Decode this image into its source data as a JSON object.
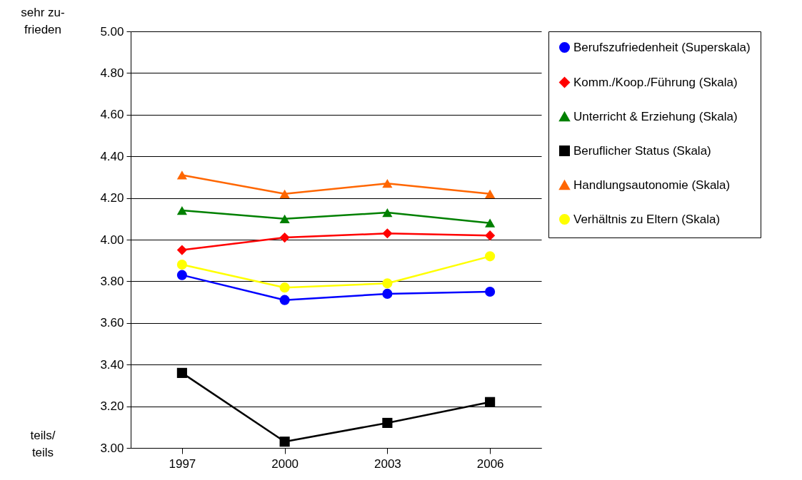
{
  "chart_data": {
    "type": "line",
    "categories": [
      "1997",
      "2000",
      "2003",
      "2006"
    ],
    "series": [
      {
        "name": "Berufszufriedenheit (Superskala)",
        "color": "#0000ff",
        "marker": "circle",
        "values": [
          3.83,
          3.71,
          3.74,
          3.75
        ]
      },
      {
        "name": "Komm./Koop./Führung (Skala)",
        "color": "#ff0000",
        "marker": "diamond",
        "values": [
          3.95,
          4.01,
          4.03,
          4.02
        ]
      },
      {
        "name": "Unterricht & Erziehung (Skala)",
        "color": "#008000",
        "marker": "triangle",
        "values": [
          4.14,
          4.1,
          4.13,
          4.08
        ]
      },
      {
        "name": "Beruflicher Status (Skala)",
        "color": "#000000",
        "marker": "square",
        "values": [
          3.36,
          3.03,
          3.12,
          3.22
        ]
      },
      {
        "name": "Handlungsautonomie (Skala)",
        "color": "#ff6600",
        "marker": "triangle",
        "values": [
          4.31,
          4.22,
          4.27,
          4.22
        ]
      },
      {
        "name": "Verhältnis zu Eltern (Skala)",
        "color": "#ffff00",
        "marker": "circle",
        "values": [
          3.88,
          3.77,
          3.79,
          3.92
        ]
      }
    ],
    "ylim": [
      3,
      5
    ],
    "yticks": [
      {
        "value": 3,
        "label": "3.00"
      },
      {
        "value": 3.2,
        "label": "3.20"
      },
      {
        "value": 3.4,
        "label": "3.40"
      },
      {
        "value": 3.6,
        "label": "3.60"
      },
      {
        "value": 3.8,
        "label": "3.80"
      },
      {
        "value": 4,
        "label": "4.00"
      },
      {
        "value": 4.2,
        "label": "4.20"
      },
      {
        "value": 4.4,
        "label": "4.40"
      },
      {
        "value": 4.6,
        "label": "4.60"
      },
      {
        "value": 4.8,
        "label": "4.80"
      },
      {
        "value": 5,
        "label": "5.00"
      }
    ],
    "annotations": [
      "sehr zu-\nfrieden",
      "teils/\nteils"
    ],
    "grid": "y",
    "legend": "right",
    "line_style": "solid"
  }
}
